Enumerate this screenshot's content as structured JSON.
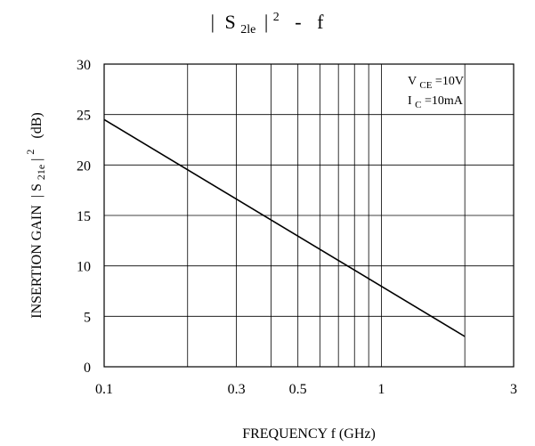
{
  "chart_data": {
    "type": "line",
    "title": {
      "bar_left": "|",
      "s": "S",
      "sub": "2le",
      "bar_right": "|",
      "sup": "2",
      "dash": "-",
      "f": "f"
    },
    "xlabel": "FREQUENCY f  (GHz)",
    "ylabel": {
      "prefix": "INSERTION GAIN",
      "bar_left": "|",
      "s": "S",
      "sub": "21e",
      "bar_right": "|",
      "sup": "2",
      "unit": "(dB)"
    },
    "x_scale": "log",
    "xlim": [
      0.1,
      3
    ],
    "ylim": [
      0,
      30
    ],
    "x_ticks": [
      {
        "value": 0.1,
        "label": "0.1"
      },
      {
        "value": 0.3,
        "label": "0.3"
      },
      {
        "value": 0.5,
        "label": "0.5"
      },
      {
        "value": 1,
        "label": "1"
      },
      {
        "value": 3,
        "label": "3"
      }
    ],
    "x_gridlines": [
      0.2,
      0.3,
      0.4,
      0.5,
      0.6,
      0.7,
      0.8,
      0.9,
      1,
      2
    ],
    "y_ticks": [
      {
        "value": 0,
        "label": "0"
      },
      {
        "value": 5,
        "label": "5"
      },
      {
        "value": 10,
        "label": "10"
      },
      {
        "value": 15,
        "label": "15"
      },
      {
        "value": 20,
        "label": "20"
      },
      {
        "value": 25,
        "label": "25"
      },
      {
        "value": 30,
        "label": "30"
      }
    ],
    "grid": true,
    "conditions": {
      "line1": {
        "v": "V",
        "sub": "CE",
        "rest": "=10V"
      },
      "line2": {
        "v": "I",
        "sub": "C",
        "rest": "=10mA"
      }
    },
    "series": [
      {
        "color": "#000000",
        "x": [
          0.1,
          2.0
        ],
        "y": [
          24.5,
          3.0
        ]
      }
    ]
  }
}
